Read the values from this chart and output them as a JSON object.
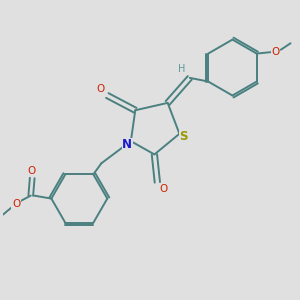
{
  "background_color": "#e0e0e0",
  "bond_color": "#4a8080",
  "bond_width": 1.4,
  "N_color": "#1a1acc",
  "S_color": "#999900",
  "O_color": "#cc2200",
  "H_color": "#5a9999",
  "font_size": 7.5,
  "fig_width": 3.0,
  "fig_height": 3.0,
  "dpi": 100,
  "xlim": [
    0,
    10
  ],
  "ylim": [
    0,
    10
  ]
}
